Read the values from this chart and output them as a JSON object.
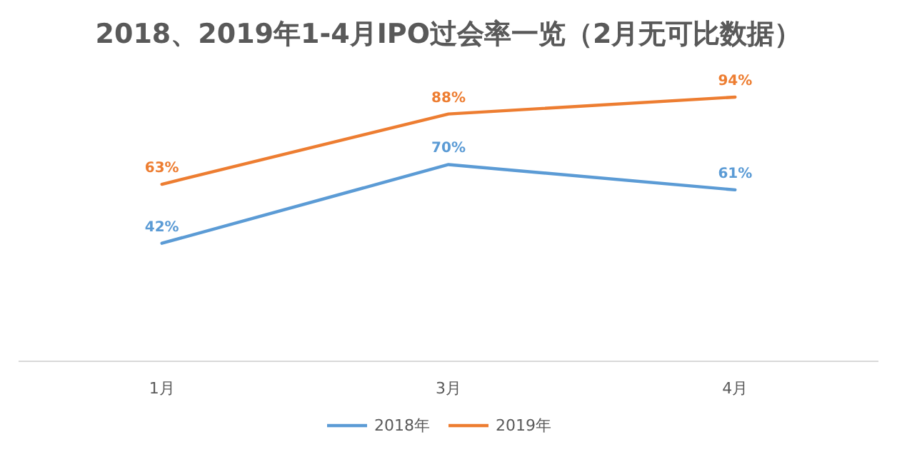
{
  "chart_data": {
    "type": "line",
    "title": "2018、2019年1-4月IPO过会率一览（2月无可比数据）",
    "categories": [
      "1月",
      "3月",
      "4月"
    ],
    "series": [
      {
        "name": "2018年",
        "color": "#5b9bd5",
        "values": [
          42,
          70,
          61
        ],
        "value_labels": [
          "42%",
          "70%",
          "61%"
        ]
      },
      {
        "name": "2019年",
        "color": "#ed7d31",
        "values": [
          63,
          88,
          94
        ],
        "value_labels": [
          "63%",
          "88%",
          "94%"
        ]
      }
    ],
    "legend": "bottom",
    "marker": "none",
    "line_style": "solid"
  }
}
